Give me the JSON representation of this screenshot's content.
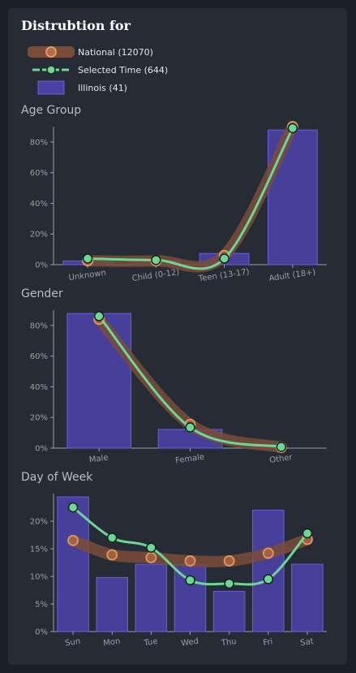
{
  "title": "Distrubtion for",
  "legend": {
    "national": "National (12070)",
    "selected": "Selected Time (644)",
    "state": "Illinois (41)"
  },
  "colors": {
    "background": "#262b35",
    "bar_fill": "#4b42a6",
    "bar_stroke": "#6b5fd6",
    "national_band": "#7a4d3a",
    "national_marker": "#e0985f",
    "selected_line": "#6fd796",
    "axis": "#9aa0ac",
    "tick_text": "#9aa0ac"
  },
  "chart_data": [
    {
      "type": "bar",
      "title": "Age Group",
      "categories": [
        "Unknown",
        "Child (0-12)",
        "Teen (13-17)",
        "Adult (18+)"
      ],
      "ylim": [
        0,
        90
      ],
      "yticks": [
        "0%",
        "20%",
        "40%",
        "60%",
        "80%"
      ],
      "series": [
        {
          "name": "Illinois (41)",
          "kind": "bar",
          "values": [
            2.4,
            2.4,
            7.3,
            87.8
          ]
        },
        {
          "name": "National (12070)",
          "kind": "band",
          "values": [
            2.5,
            2.5,
            6.0,
            90.0
          ]
        },
        {
          "name": "Selected Time (644)",
          "kind": "line",
          "values": [
            4.0,
            3.0,
            4.0,
            89.0
          ]
        }
      ]
    },
    {
      "type": "bar",
      "title": "Gender",
      "categories": [
        "Male",
        "Female",
        "Other"
      ],
      "ylim": [
        0,
        90
      ],
      "yticks": [
        "0%",
        "20%",
        "40%",
        "60%",
        "80%"
      ],
      "series": [
        {
          "name": "Illinois (41)",
          "kind": "bar",
          "values": [
            87.8,
            12.2,
            0
          ]
        },
        {
          "name": "National (12070)",
          "kind": "band",
          "values": [
            84.0,
            15.5,
            0.5
          ]
        },
        {
          "name": "Selected Time (644)",
          "kind": "line",
          "values": [
            86.0,
            13.5,
            0.8
          ]
        }
      ]
    },
    {
      "type": "bar",
      "title": "Day of Week",
      "categories": [
        "Sun",
        "Mon",
        "Tue",
        "Wed",
        "Thu",
        "Fri",
        "Sat"
      ],
      "ylim": [
        0,
        25
      ],
      "yticks": [
        "0%",
        "5%",
        "10%",
        "15%",
        "20%"
      ],
      "series": [
        {
          "name": "Illinois (41)",
          "kind": "bar",
          "values": [
            24.4,
            9.8,
            12.2,
            12.2,
            7.3,
            22.0,
            12.2
          ]
        },
        {
          "name": "National (12070)",
          "kind": "band",
          "values": [
            16.5,
            13.9,
            13.4,
            12.8,
            12.8,
            14.2,
            16.7
          ]
        },
        {
          "name": "Selected Time (644)",
          "kind": "line",
          "values": [
            22.5,
            17.0,
            15.2,
            9.3,
            8.7,
            9.5,
            17.8
          ]
        }
      ]
    }
  ]
}
